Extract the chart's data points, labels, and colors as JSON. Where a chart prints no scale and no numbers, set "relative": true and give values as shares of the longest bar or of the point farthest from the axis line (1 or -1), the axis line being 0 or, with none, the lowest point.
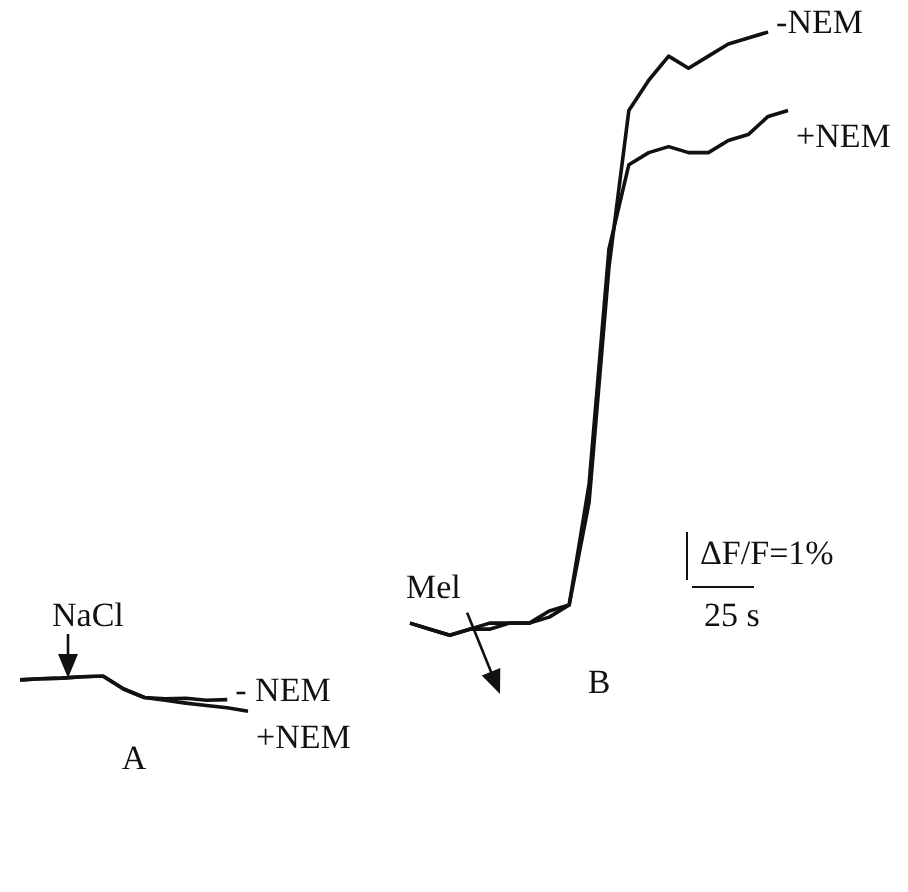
{
  "chart_data": [
    {
      "type": "line",
      "title": "A",
      "relative": true,
      "legend": false,
      "categories": [
        null,
        null,
        null,
        null,
        null,
        null,
        null,
        null,
        null,
        null,
        null,
        null
      ],
      "annotations": [
        "NaCl"
      ],
      "series": [
        {
          "name": "- NEM",
          "color": "#111111",
          "values": [
            0.89,
            0.92,
            0.94,
            0.98,
            1.0,
            0.63,
            0.39,
            0.35,
            0.37,
            0.31,
            0.33,
            null
          ]
        },
        {
          "name": "+NEM",
          "color": "#111111",
          "values": [
            0.89,
            0.92,
            0.94,
            0.98,
            1.0,
            0.63,
            0.39,
            0.31,
            0.23,
            0.16,
            0.1,
            0.0
          ]
        }
      ]
    },
    {
      "type": "line",
      "title": "B",
      "relative": true,
      "legend": false,
      "categories": [
        null,
        null,
        null,
        null,
        null,
        null,
        null,
        null,
        null,
        null,
        null,
        null,
        null,
        null,
        null,
        null,
        null,
        null,
        null,
        null
      ],
      "annotations": [
        "Mel",
        "ΔF/F=1%",
        "25 s"
      ],
      "series": [
        {
          "name": "-NEM",
          "color": "#111111",
          "values": [
            0.02,
            0.01,
            0.0,
            0.01,
            0.01,
            0.02,
            0.02,
            0.04,
            0.05,
            0.22,
            0.61,
            0.87,
            0.92,
            0.96,
            0.94,
            0.96,
            0.98,
            0.99,
            1.0,
            null
          ]
        },
        {
          "name": "+NEM",
          "color": "#111111",
          "values": [
            0.02,
            0.01,
            0.0,
            0.01,
            0.02,
            0.02,
            0.02,
            0.03,
            0.05,
            0.25,
            0.64,
            0.78,
            0.8,
            0.81,
            0.8,
            0.8,
            0.82,
            0.83,
            0.86,
            0.87
          ]
        }
      ]
    }
  ]
}
